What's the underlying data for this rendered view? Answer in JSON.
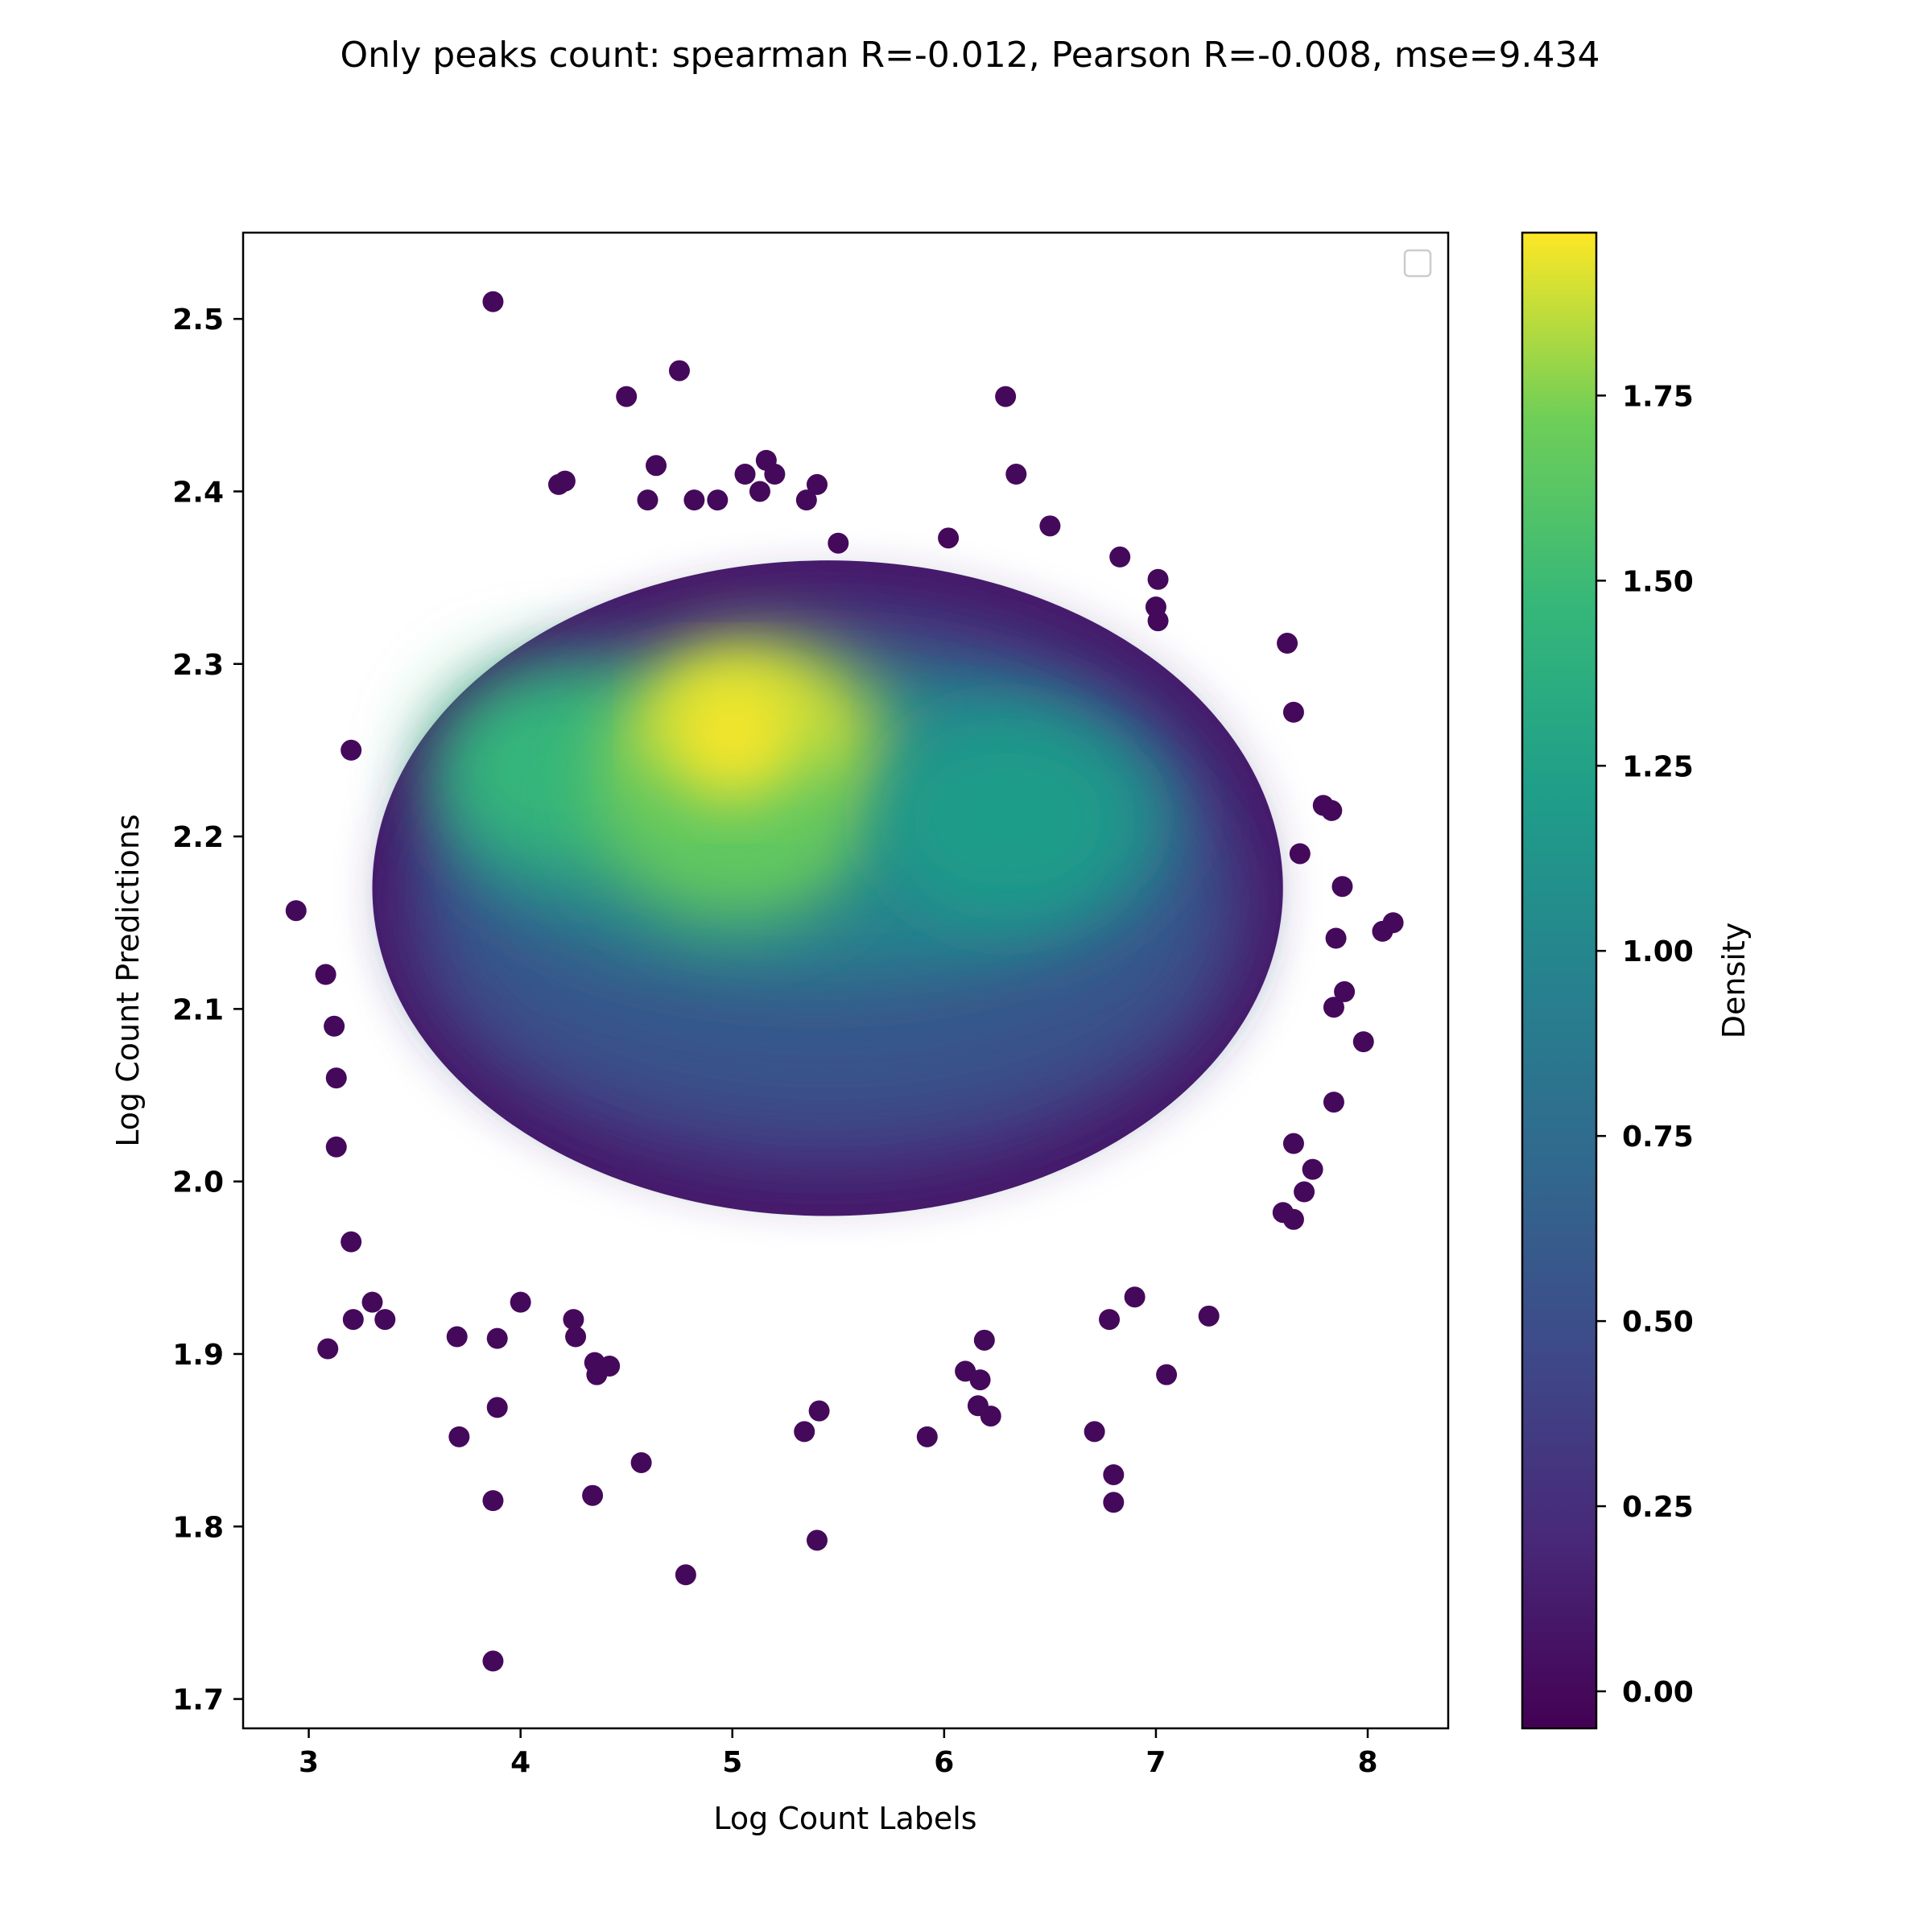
{
  "chart_data": {
    "type": "scatter",
    "title": "Only peaks count: spearman R=-0.012, Pearson R=-0.008, mse=9.434",
    "xlabel": "Log Count Labels",
    "ylabel": "Log Count Predictions",
    "xlim": [
      2.69,
      8.38
    ],
    "ylim": [
      1.683,
      2.55
    ],
    "x_ticks": [
      "3",
      "4",
      "5",
      "6",
      "7",
      "8"
    ],
    "y_ticks": [
      "1.7",
      "1.8",
      "1.9",
      "2.0",
      "2.1",
      "2.2",
      "2.3",
      "2.4",
      "2.5"
    ],
    "legend": "top-right (empty)",
    "grid": false,
    "colormap": "viridis",
    "colorbar": {
      "label": "Density",
      "range": [
        -0.05,
        1.97
      ],
      "ticks": [
        "0.00",
        "0.25",
        "0.50",
        "0.75",
        "1.00",
        "1.25",
        "1.50",
        "1.75"
      ]
    },
    "density_peak": {
      "x": 5.0,
      "y": 2.26,
      "density": 1.95
    },
    "density_clusters": [
      {
        "x": 4.2,
        "y": 2.24,
        "density": 1.45
      },
      {
        "x": 5.1,
        "y": 2.25,
        "density": 1.9
      },
      {
        "x": 5.0,
        "y": 2.21,
        "density": 1.65
      },
      {
        "x": 6.3,
        "y": 2.21,
        "density": 1.2
      }
    ],
    "bulk_extent": {
      "x": [
        3.3,
        7.6
      ],
      "y": [
        1.98,
        2.36
      ]
    },
    "outliers": [
      [
        3.87,
        2.51
      ],
      [
        4.5,
        2.455
      ],
      [
        4.75,
        2.47
      ],
      [
        6.29,
        2.455
      ],
      [
        6.34,
        2.41
      ],
      [
        6.5,
        2.38
      ],
      [
        4.18,
        2.404
      ],
      [
        4.21,
        2.406
      ],
      [
        4.64,
        2.415
      ],
      [
        5.16,
        2.418
      ],
      [
        5.2,
        2.41
      ],
      [
        5.06,
        2.41
      ],
      [
        5.13,
        2.4
      ],
      [
        4.6,
        2.395
      ],
      [
        4.82,
        2.395
      ],
      [
        4.93,
        2.395
      ],
      [
        5.35,
        2.395
      ],
      [
        5.4,
        2.404
      ],
      [
        2.94,
        2.157
      ],
      [
        3.08,
        2.12
      ],
      [
        3.12,
        2.09
      ],
      [
        3.13,
        2.06
      ],
      [
        3.13,
        2.02
      ],
      [
        3.2,
        2.25
      ],
      [
        3.2,
        1.965
      ],
      [
        3.21,
        1.92
      ],
      [
        3.09,
        1.903
      ],
      [
        3.3,
        1.93
      ],
      [
        3.36,
        1.92
      ],
      [
        3.7,
        1.91
      ],
      [
        3.89,
        1.909
      ],
      [
        4.0,
        1.93
      ],
      [
        4.25,
        1.92
      ],
      [
        4.26,
        1.91
      ],
      [
        4.35,
        1.895
      ],
      [
        4.36,
        1.888
      ],
      [
        4.42,
        1.893
      ],
      [
        3.89,
        1.869
      ],
      [
        3.71,
        1.852
      ],
      [
        3.87,
        1.815
      ],
      [
        3.87,
        1.722
      ],
      [
        4.34,
        1.818
      ],
      [
        4.57,
        1.837
      ],
      [
        4.78,
        1.772
      ],
      [
        5.34,
        1.855
      ],
      [
        5.41,
        1.867
      ],
      [
        5.4,
        1.792
      ],
      [
        5.92,
        1.852
      ],
      [
        6.16,
        1.87
      ],
      [
        6.22,
        1.864
      ],
      [
        6.1,
        1.89
      ],
      [
        6.17,
        1.885
      ],
      [
        6.19,
        1.908
      ],
      [
        6.71,
        1.855
      ],
      [
        6.8,
        1.83
      ],
      [
        6.8,
        1.814
      ],
      [
        6.78,
        1.92
      ],
      [
        6.9,
        1.933
      ],
      [
        7.05,
        1.888
      ],
      [
        7.25,
        1.922
      ],
      [
        7.6,
        1.982
      ],
      [
        7.65,
        1.978
      ],
      [
        7.7,
        1.994
      ],
      [
        7.74,
        2.007
      ],
      [
        7.65,
        2.022
      ],
      [
        7.84,
        2.046
      ],
      [
        7.98,
        2.081
      ],
      [
        7.84,
        2.101
      ],
      [
        7.89,
        2.11
      ],
      [
        8.07,
        2.145
      ],
      [
        8.12,
        2.15
      ],
      [
        7.85,
        2.141
      ],
      [
        7.88,
        2.171
      ],
      [
        7.79,
        2.218
      ],
      [
        7.83,
        2.215
      ],
      [
        7.68,
        2.19
      ],
      [
        7.62,
        2.312
      ],
      [
        7.65,
        2.272
      ],
      [
        6.83,
        2.362
      ],
      [
        7.01,
        2.349
      ],
      [
        7.0,
        2.333
      ],
      [
        7.01,
        2.325
      ],
      [
        5.5,
        2.37
      ],
      [
        6.02,
        2.373
      ]
    ]
  }
}
